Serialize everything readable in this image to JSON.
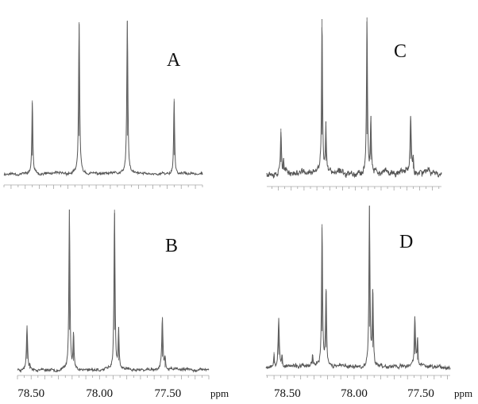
{
  "chart_data": [
    {
      "type": "line",
      "panel": "A",
      "xlabel": "",
      "ylabel": "",
      "xlim": [
        78.75,
        77.35
      ],
      "baseline_noise": 0.012,
      "peaks": [
        {
          "x": 78.55,
          "h": 0.46,
          "w": 0.004
        },
        {
          "x": 78.22,
          "h": 0.95,
          "w": 0.0045
        },
        {
          "x": 77.88,
          "h": 0.96,
          "w": 0.0045
        },
        {
          "x": 77.55,
          "h": 0.47,
          "w": 0.004
        }
      ]
    },
    {
      "type": "line",
      "panel": "B",
      "xlabel": "ppm",
      "ylabel": "",
      "xlim": [
        78.6,
        77.2
      ],
      "x_ticks": [
        "78.50",
        "78.00",
        "77.50"
      ],
      "baseline_noise": 0.012,
      "peaks": [
        {
          "x": 78.53,
          "h": 0.27,
          "w": 0.005
        },
        {
          "x": 78.51,
          "h": 0.03,
          "w": 0.004
        },
        {
          "x": 78.22,
          "h": 0.97,
          "w": 0.0045
        },
        {
          "x": 78.19,
          "h": 0.22,
          "w": 0.004
        },
        {
          "x": 77.89,
          "h": 0.97,
          "w": 0.0045
        },
        {
          "x": 77.86,
          "h": 0.23,
          "w": 0.004
        },
        {
          "x": 77.54,
          "h": 0.32,
          "w": 0.005
        },
        {
          "x": 77.52,
          "h": 0.06,
          "w": 0.004
        }
      ]
    },
    {
      "type": "line",
      "panel": "C",
      "xlabel": "",
      "ylabel": "",
      "xlim": [
        78.69,
        77.33
      ],
      "baseline_noise": 0.028,
      "peaks": [
        {
          "x": 78.58,
          "h": 0.28,
          "w": 0.005
        },
        {
          "x": 78.56,
          "h": 0.08,
          "w": 0.004
        },
        {
          "x": 78.26,
          "h": 0.97,
          "w": 0.0045
        },
        {
          "x": 78.23,
          "h": 0.31,
          "w": 0.004
        },
        {
          "x": 77.91,
          "h": 0.98,
          "w": 0.0045
        },
        {
          "x": 77.88,
          "h": 0.34,
          "w": 0.004
        },
        {
          "x": 77.57,
          "h": 0.36,
          "w": 0.005
        },
        {
          "x": 77.55,
          "h": 0.11,
          "w": 0.004
        }
      ]
    },
    {
      "type": "line",
      "panel": "D",
      "xlabel": "ppm",
      "ylabel": "",
      "xlim": [
        78.66,
        77.28
      ],
      "x_ticks": [
        "78.50",
        "78.00",
        "77.50"
      ],
      "baseline_noise": 0.018,
      "peaks": [
        {
          "x": 78.6,
          "h": 0.09,
          "w": 0.004
        },
        {
          "x": 78.565,
          "h": 0.3,
          "w": 0.005
        },
        {
          "x": 78.54,
          "h": 0.07,
          "w": 0.004
        },
        {
          "x": 78.31,
          "h": 0.07,
          "w": 0.004
        },
        {
          "x": 78.24,
          "h": 0.88,
          "w": 0.0045
        },
        {
          "x": 78.21,
          "h": 0.48,
          "w": 0.0045
        },
        {
          "x": 77.885,
          "h": 0.99,
          "w": 0.0045
        },
        {
          "x": 77.86,
          "h": 0.48,
          "w": 0.0045
        },
        {
          "x": 77.545,
          "h": 0.31,
          "w": 0.005
        },
        {
          "x": 77.525,
          "h": 0.17,
          "w": 0.004
        }
      ]
    }
  ]
}
